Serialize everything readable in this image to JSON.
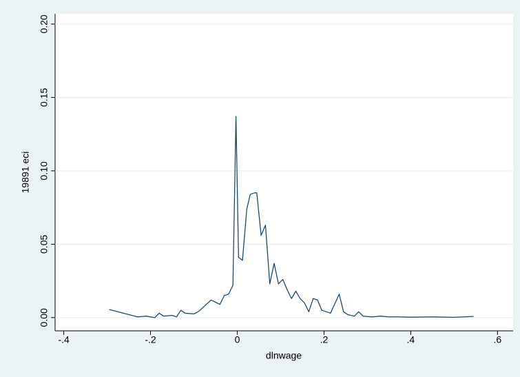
{
  "chart_data": {
    "type": "line",
    "x_label": "dlnwage",
    "y_label": "19891 eci",
    "xlim": [
      -0.42,
      0.636
    ],
    "ylim": [
      -0.009,
      0.207
    ],
    "xticks": [
      {
        "value": -0.4,
        "label": "-.4"
      },
      {
        "value": -0.2,
        "label": "-.2"
      },
      0,
      {
        "value": 0.2,
        "label": ".2"
      },
      {
        "value": 0.4,
        "label": ".4"
      },
      {
        "value": 0.6,
        "label": ".6"
      }
    ],
    "yticks": [
      {
        "value": 0,
        "label": "0.00"
      },
      {
        "value": 0.05,
        "label": "0.05"
      },
      {
        "value": 0.1,
        "label": "0.10"
      },
      {
        "value": 0.15,
        "label": "0.15"
      },
      {
        "value": 0.2,
        "label": "0.20"
      }
    ],
    "grid": true,
    "color": "#1a476f",
    "x": [
      -0.295,
      -0.23,
      -0.21,
      -0.19,
      -0.18,
      -0.17,
      -0.15,
      -0.14,
      -0.13,
      -0.12,
      -0.1,
      -0.09,
      -0.06,
      -0.04,
      -0.03,
      -0.02,
      -0.01,
      -0.003,
      0.003,
      0.012,
      0.022,
      0.03,
      0.04,
      0.045,
      0.055,
      0.065,
      0.075,
      0.085,
      0.095,
      0.105,
      0.115,
      0.125,
      0.135,
      0.145,
      0.155,
      0.165,
      0.175,
      0.185,
      0.195,
      0.205,
      0.215,
      0.235,
      0.245,
      0.255,
      0.27,
      0.28,
      0.29,
      0.31,
      0.33,
      0.35,
      0.37,
      0.4,
      0.45,
      0.5,
      0.545
    ],
    "values": [
      0.0055,
      0.0005,
      0.001,
      0.0,
      0.003,
      0.001,
      0.0015,
      0.0005,
      0.005,
      0.003,
      0.0025,
      0.004,
      0.012,
      0.009,
      0.015,
      0.016,
      0.022,
      0.137,
      0.041,
      0.039,
      0.074,
      0.084,
      0.085,
      0.085,
      0.056,
      0.063,
      0.023,
      0.037,
      0.023,
      0.026,
      0.019,
      0.013,
      0.018,
      0.013,
      0.01,
      0.004,
      0.013,
      0.012,
      0.005,
      0.004,
      0.003,
      0.016,
      0.004,
      0.002,
      0.001,
      0.004,
      0.001,
      0.0005,
      0.001,
      0.0005,
      0.0005,
      0.0003,
      0.0005,
      0.0002,
      0.0008
    ]
  }
}
